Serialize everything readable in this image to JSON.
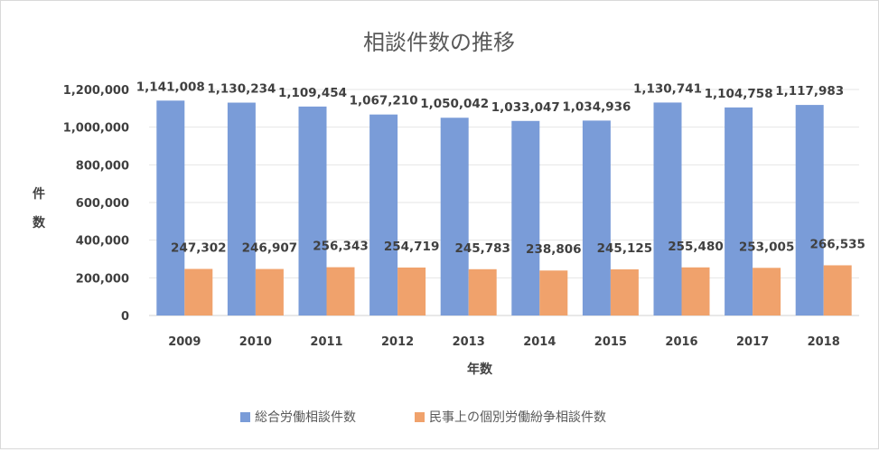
{
  "chart_data": {
    "type": "bar",
    "title": "相談件数の推移",
    "xlabel": "年数",
    "ylabel": "件数",
    "categories": [
      "2009",
      "2010",
      "2011",
      "2012",
      "2013",
      "2014",
      "2015",
      "2016",
      "2017",
      "2018"
    ],
    "series": [
      {
        "name": "総合労働相談件数",
        "color": "#7a9cd8",
        "values": [
          1141008,
          1130234,
          1109454,
          1067210,
          1050042,
          1033047,
          1034936,
          1130741,
          1104758,
          1117983
        ],
        "labels": [
          "1,141,008",
          "1,130,234",
          "1,109,454",
          "1,067,210",
          "1,050,042",
          "1,033,047",
          "1,034,936",
          "1,130,741",
          "1,104,758",
          "1,117,983"
        ]
      },
      {
        "name": "民事上の個別労働紛争相談件数",
        "color": "#f0a26c",
        "values": [
          247302,
          246907,
          256343,
          254719,
          245783,
          238806,
          245125,
          255480,
          253005,
          266535
        ],
        "labels": [
          "247,302",
          "246,907",
          "256,343",
          "254,719",
          "245,783",
          "238,806",
          "245,125",
          "255,480",
          "253,005",
          "266,535"
        ]
      }
    ],
    "ylim": [
      0,
      1200000
    ],
    "yticks": [
      "0",
      "200,000",
      "400,000",
      "600,000",
      "800,000",
      "1,000,000",
      "1,200,000"
    ],
    "grid": true,
    "legend": "bottom"
  }
}
